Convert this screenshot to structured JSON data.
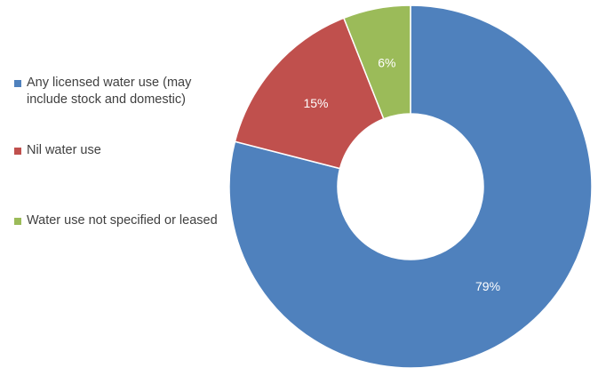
{
  "chart_data": {
    "type": "pie",
    "variant": "donut",
    "title": "",
    "categories": [
      "Any licensed water use (may include stock and domestic)",
      "Nil water use",
      "Water use not specified or leased"
    ],
    "values": [
      79,
      15,
      6
    ],
    "value_labels": [
      "79%",
      "15%",
      "6%"
    ],
    "colors": [
      "#4F81BD",
      "#C0504D",
      "#9BBB59"
    ],
    "legend_position": "left"
  }
}
